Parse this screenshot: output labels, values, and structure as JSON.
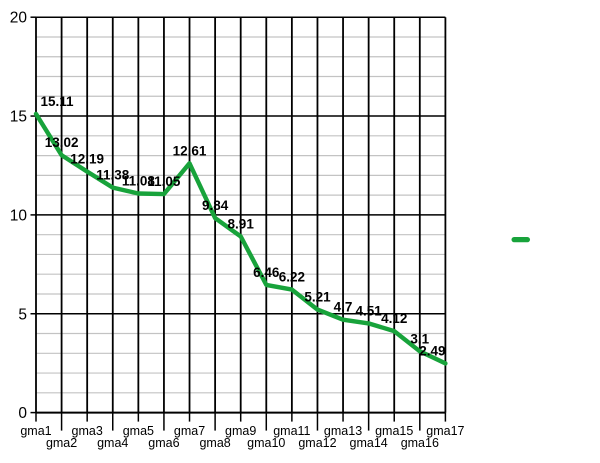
{
  "chart_data": {
    "type": "line",
    "title": "",
    "xlabel": "",
    "ylabel": "",
    "categories": [
      "gma1",
      "gma2",
      "gma3",
      "gma4",
      "gma5",
      "gma6",
      "gma7",
      "gma8",
      "gma9",
      "gma10",
      "gma11",
      "gma12",
      "gma13",
      "gma14",
      "gma15",
      "gma16",
      "gma17"
    ],
    "series": [
      {
        "name": "",
        "color": "#18a33b",
        "values": [
          15.11,
          13.02,
          12.19,
          11.38,
          11.08,
          11.05,
          12.61,
          9.84,
          8.91,
          6.46,
          6.22,
          5.21,
          4.7,
          4.51,
          4.12,
          3.1,
          2.49
        ],
        "point_labels": [
          "15.11",
          "13.02",
          "12.19",
          "11.38",
          "11.08",
          "11.05",
          "12.61",
          "9.84",
          "8.91",
          "6.46",
          "6.22",
          "5.21",
          "4.7",
          "4.51",
          "4.12",
          "3.1",
          "2.49"
        ]
      }
    ],
    "ylim": [
      0,
      20
    ],
    "yticks": [
      0,
      5,
      10,
      15,
      20
    ],
    "ytick_labels": [
      "0",
      "5",
      "10",
      "15",
      "20"
    ],
    "minor_y_step": 1,
    "grid": {
      "horizontal_major": true,
      "horizontal_minor": true,
      "vertical_major": true,
      "major_color": "#000000",
      "minor_color": "#c3c3c3",
      "vertical_color": "#000000"
    },
    "legend": {
      "position": "right",
      "entries": [
        {
          "label": "",
          "color": "#18a33b"
        }
      ]
    },
    "background": "#ffffff",
    "text_color": "#000000"
  }
}
